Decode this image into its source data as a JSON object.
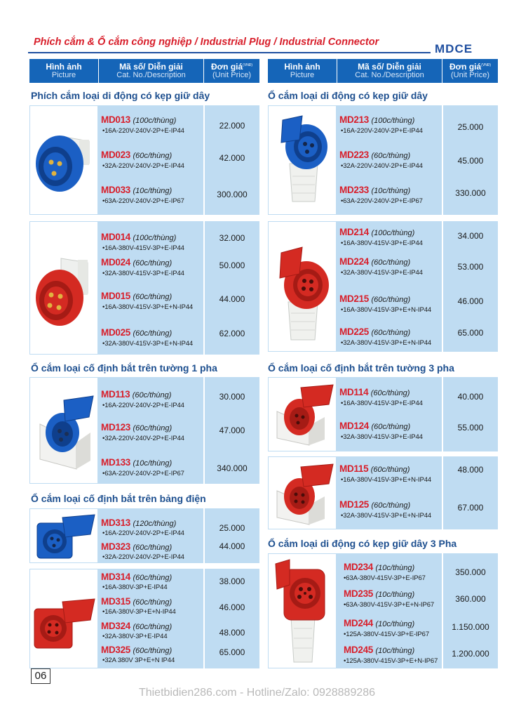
{
  "title": "Phích cắm & Ổ cắm công nghiệp / Industrial Plug / Industrial Connector",
  "brand": "MDCE",
  "header": {
    "picture": "Hình ảnh",
    "picture_sub": "Picture",
    "desc": "Mã số/ Diễn giải",
    "desc_sub": "Cat. No./Description",
    "price": "Đơn giá",
    "price_unit": "(VNĐ)",
    "price_sub": "(Unit Price)"
  },
  "sections": {
    "s1": "Phích cắm loại di động có kẹp giữ dây",
    "s2": "Ổ cắm loại di động có kẹp giữ dây",
    "s3": "Ổ cắm loại cố định bắt trên tường 1 pha",
    "s4": "Ổ cắm loại cố định bắt trên tường 3 pha",
    "s5": "Ổ cắm loại cố định bắt trên bảng điện",
    "s6": "Ổ cắm loại di động có kẹp giữ dây 3 Pha"
  },
  "items": {
    "md013": {
      "code": "MD013",
      "qty": "(100c/thùng)",
      "spec": "•16A-220V-240V-2P+E-IP44",
      "price": "22.000"
    },
    "md023": {
      "code": "MD023",
      "qty": "(60c/thùng)",
      "spec": "•32A-220V-240V-2P+E-IP44",
      "price": "42.000"
    },
    "md033": {
      "code": "MD033",
      "qty": "(10c/thùng)",
      "spec": "•63A-220V-240V-2P+E-IP67",
      "price": "300.000"
    },
    "md014": {
      "code": "MD014",
      "qty": "(100c/thùng)",
      "spec": "•16A-380V-415V-3P+E-IP44",
      "price": "32.000"
    },
    "md024": {
      "code": "MD024",
      "qty": "(60c/thùng)",
      "spec": "•32A-380V-415V-3P+E-IP44",
      "price": "50.000"
    },
    "md015": {
      "code": "MD015",
      "qty": "(60c/thùng)",
      "spec": "•16A-380V-415V-3P+E+N-IP44",
      "price": "44.000"
    },
    "md025": {
      "code": "MD025",
      "qty": "(60c/thùng)",
      "spec": "•32A-380V-415V-3P+E+N-IP44",
      "price": "62.000"
    },
    "md213": {
      "code": "MD213",
      "qty": "(100c/thùng)",
      "spec": "•16A-220V-240V-2P+E-IP44",
      "price": "25.000"
    },
    "md223": {
      "code": "MD223",
      "qty": "(60c/thùng)",
      "spec": "•32A-220V-240V-2P+E-IP44",
      "price": "45.000"
    },
    "md233": {
      "code": "MD233",
      "qty": "(10c/thùng)",
      "spec": "•63A-220V-240V-2P+E-IP67",
      "price": "330.000"
    },
    "md214": {
      "code": "MD214",
      "qty": "(100c/thùng)",
      "spec": "•16A-380V-415V-3P+E-IP44",
      "price": "34.000"
    },
    "md224": {
      "code": "MD224",
      "qty": "(60c/thùng)",
      "spec": "•32A-380V-415V-3P+E-IP44",
      "price": "53.000"
    },
    "md215": {
      "code": "MD215",
      "qty": "(60c/thùng)",
      "spec": "•16A-380V-415V-3P+E+N-IP44",
      "price": "46.000"
    },
    "md225": {
      "code": "MD225",
      "qty": "(60c/thùng)",
      "spec": "•32A-380V-415V-3P+E+N-IP44",
      "price": "65.000"
    },
    "md113": {
      "code": "MD113",
      "qty": "(60c/thùng)",
      "spec": "•16A-220V-240V-2P+E-IP44",
      "price": "30.000"
    },
    "md123": {
      "code": "MD123",
      "qty": "(60c/thùng)",
      "spec": "•32A-220V-240V-2P+E-IP44",
      "price": "47.000"
    },
    "md133": {
      "code": "MD133",
      "qty": "(10c/thùng)",
      "spec": "•63A-220V-240V-2P+E-IP67",
      "price": "340.000"
    },
    "md114": {
      "code": "MD114",
      "qty": "(60c/thùng)",
      "spec": "•16A-380V-415V-3P+E-IP44",
      "price": "40.000"
    },
    "md124": {
      "code": "MD124",
      "qty": "(60c/thùng)",
      "spec": "•32A-380V-415V-3P+E-IP44",
      "price": "55.000"
    },
    "md115": {
      "code": "MD115",
      "qty": "(60c/thùng)",
      "spec": "•16A-380V-415V-3P+E+N-IP44",
      "price": "48.000"
    },
    "md125": {
      "code": "MD125",
      "qty": "(60c/thùng)",
      "spec": "•32A-380V-415V-3P+E+N-IP44",
      "price": "67.000"
    },
    "md313": {
      "code": "MD313",
      "qty": "(120c/thùng)",
      "spec": "•16A-220V-240V-2P+E-IP44",
      "price": "25.000"
    },
    "md323": {
      "code": "MD323",
      "qty": "(60c/thùng)",
      "spec": "•32A-220V-240V-2P+E-IP44",
      "price": "44.000"
    },
    "md314": {
      "code": "MD314",
      "qty": "(60c/thùng)",
      "spec": "•16A-380V-3P+E-IP44",
      "price": "38.000"
    },
    "md315": {
      "code": "MD315",
      "qty": "(60c/thùng)",
      "spec": "•16A-380V-3P+E+N-IP44",
      "price": "46.000"
    },
    "md324": {
      "code": "MD324",
      "qty": "(60c/thùng)",
      "spec": "•32A-380V-3P+E-IP44",
      "price": "48.000"
    },
    "md325": {
      "code": "MD325",
      "qty": "(60c/thùng)",
      "spec": "•32A 380V 3P+E+N IP44",
      "price": "65.000"
    },
    "md234": {
      "code": "MD234",
      "qty": "(10c/thùng)",
      "spec": "•63A-380V-415V-3P+E-IP67",
      "price": "350.000"
    },
    "md235": {
      "code": "MD235",
      "qty": "(10c/thùng)",
      "spec": "•63A-380V-415V-3P+E+N-IP67",
      "price": "360.000"
    },
    "md244": {
      "code": "MD244",
      "qty": "(10c/thùng)",
      "spec": "•125A-380V-415V-3P+E-IP67",
      "price": "1.150.000"
    },
    "md245": {
      "code": "MD245",
      "qty": "(10c/thùng)",
      "spec": "•125A-380V-415V-3P+E+N-IP67",
      "price": "1.200.000"
    }
  },
  "icons": {
    "blue_plug": "blue-industrial-plug-icon",
    "red_plug": "red-industrial-plug-icon",
    "blue_connector": "blue-industrial-connector-icon",
    "red_connector": "red-industrial-connector-icon",
    "blue_wall_socket": "blue-wall-socket-icon",
    "red_wall_socket": "red-wall-socket-icon",
    "blue_panel_socket": "blue-panel-socket-icon",
    "red_panel_socket": "red-panel-socket-icon",
    "red_large_connector": "red-large-connector-icon"
  },
  "colors": {
    "code_red": "#d81e2a",
    "header_blue": "#1565b8",
    "row_bg": "#bfdcf2",
    "section_blue": "#1d4f8f",
    "plug_blue": "#1b5fc4",
    "plug_red": "#d42a22"
  },
  "page_number": "06",
  "watermark": "Thietbidien286.com - Hotline/Zalo: 0928889286"
}
